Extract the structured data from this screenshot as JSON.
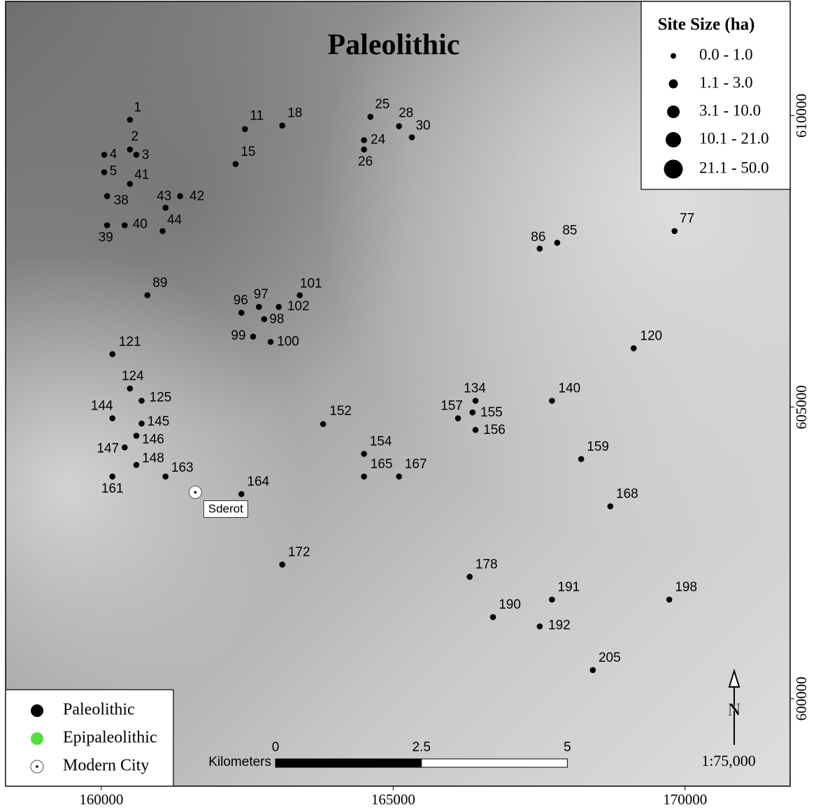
{
  "title": "Paleolithic",
  "map": {
    "xlim": [
      158360,
      171800
    ],
    "ylim": [
      598500,
      611960
    ],
    "xticks": [
      160000,
      165000,
      170000
    ],
    "yticks": [
      600000,
      605000,
      610000
    ],
    "sites": [
      {
        "id": "1",
        "x": 160490,
        "y": 609930
      },
      {
        "id": "2",
        "x": 160490,
        "y": 609420
      },
      {
        "id": "3",
        "x": 160600,
        "y": 609330
      },
      {
        "id": "4",
        "x": 160050,
        "y": 609330
      },
      {
        "id": "5",
        "x": 160050,
        "y": 609030
      },
      {
        "id": "41",
        "x": 160490,
        "y": 608830
      },
      {
        "id": "38",
        "x": 160100,
        "y": 608620
      },
      {
        "id": "43",
        "x": 161100,
        "y": 608420
      },
      {
        "id": "42",
        "x": 161350,
        "y": 608620
      },
      {
        "id": "40",
        "x": 160400,
        "y": 608120
      },
      {
        "id": "39",
        "x": 160100,
        "y": 608120
      },
      {
        "id": "44",
        "x": 161050,
        "y": 608020
      },
      {
        "id": "11",
        "x": 162460,
        "y": 609770
      },
      {
        "id": "18",
        "x": 163100,
        "y": 609830
      },
      {
        "id": "15",
        "x": 162300,
        "y": 609170
      },
      {
        "id": "25",
        "x": 164610,
        "y": 609980
      },
      {
        "id": "28",
        "x": 165100,
        "y": 609820
      },
      {
        "id": "30",
        "x": 165320,
        "y": 609630
      },
      {
        "id": "24",
        "x": 164500,
        "y": 609580
      },
      {
        "id": "26",
        "x": 164500,
        "y": 609420
      },
      {
        "id": "86",
        "x": 167510,
        "y": 607720
      },
      {
        "id": "85",
        "x": 167810,
        "y": 607820
      },
      {
        "id": "77",
        "x": 169820,
        "y": 608020
      },
      {
        "id": "89",
        "x": 160790,
        "y": 606920
      },
      {
        "id": "101",
        "x": 163400,
        "y": 606920
      },
      {
        "id": "96",
        "x": 162400,
        "y": 606620
      },
      {
        "id": "97",
        "x": 162700,
        "y": 606720
      },
      {
        "id": "102",
        "x": 163040,
        "y": 606720
      },
      {
        "id": "98",
        "x": 162790,
        "y": 606510
      },
      {
        "id": "99",
        "x": 162600,
        "y": 606210
      },
      {
        "id": "100",
        "x": 162900,
        "y": 606120
      },
      {
        "id": "121",
        "x": 160190,
        "y": 605910
      },
      {
        "id": "120",
        "x": 169120,
        "y": 606010
      },
      {
        "id": "124",
        "x": 160490,
        "y": 605320
      },
      {
        "id": "125",
        "x": 160690,
        "y": 605110
      },
      {
        "id": "144",
        "x": 160190,
        "y": 604810
      },
      {
        "id": "145",
        "x": 160690,
        "y": 604720
      },
      {
        "id": "146",
        "x": 160600,
        "y": 604510
      },
      {
        "id": "147",
        "x": 160400,
        "y": 604310
      },
      {
        "id": "148",
        "x": 160600,
        "y": 604010
      },
      {
        "id": "161",
        "x": 160190,
        "y": 603810
      },
      {
        "id": "163",
        "x": 161100,
        "y": 603810
      },
      {
        "id": "164",
        "x": 162400,
        "y": 603510
      },
      {
        "id": "152",
        "x": 163800,
        "y": 604710
      },
      {
        "id": "154",
        "x": 164500,
        "y": 604200
      },
      {
        "id": "165",
        "x": 164500,
        "y": 603810
      },
      {
        "id": "167",
        "x": 165100,
        "y": 603810
      },
      {
        "id": "134",
        "x": 166410,
        "y": 605110
      },
      {
        "id": "157",
        "x": 166110,
        "y": 604810
      },
      {
        "id": "155",
        "x": 166360,
        "y": 604910
      },
      {
        "id": "156",
        "x": 166410,
        "y": 604610
      },
      {
        "id": "140",
        "x": 167720,
        "y": 605110
      },
      {
        "id": "159",
        "x": 168220,
        "y": 604110
      },
      {
        "id": "168",
        "x": 168720,
        "y": 603300
      },
      {
        "id": "172",
        "x": 163100,
        "y": 602300
      },
      {
        "id": "178",
        "x": 166310,
        "y": 602090
      },
      {
        "id": "191",
        "x": 167720,
        "y": 601700
      },
      {
        "id": "198",
        "x": 169730,
        "y": 601700
      },
      {
        "id": "190",
        "x": 166710,
        "y": 601400
      },
      {
        "id": "192",
        "x": 167510,
        "y": 601240
      },
      {
        "id": "205",
        "x": 168420,
        "y": 600490
      }
    ],
    "city": {
      "name": "Sderot",
      "x": 161610,
      "y": 603540
    }
  },
  "size_legend": {
    "title": "Site Size (ha)",
    "items": [
      "0.0 - 1.0",
      "1.1 - 3.0",
      "3.1 - 10.0",
      "10.1 - 21.0",
      "21.1 - 50.0"
    ]
  },
  "type_legend": {
    "items": [
      {
        "label": "Paleolithic",
        "color": "#000000"
      },
      {
        "label": "Epipaleolithic",
        "color": "#4ee03a"
      },
      {
        "label": "Modern City",
        "color": "#ffffff"
      }
    ]
  },
  "scale_bar": {
    "label": "Kilometers",
    "ticks": [
      0,
      2.5,
      5
    ]
  },
  "north": "N",
  "scale": "1:75,000"
}
